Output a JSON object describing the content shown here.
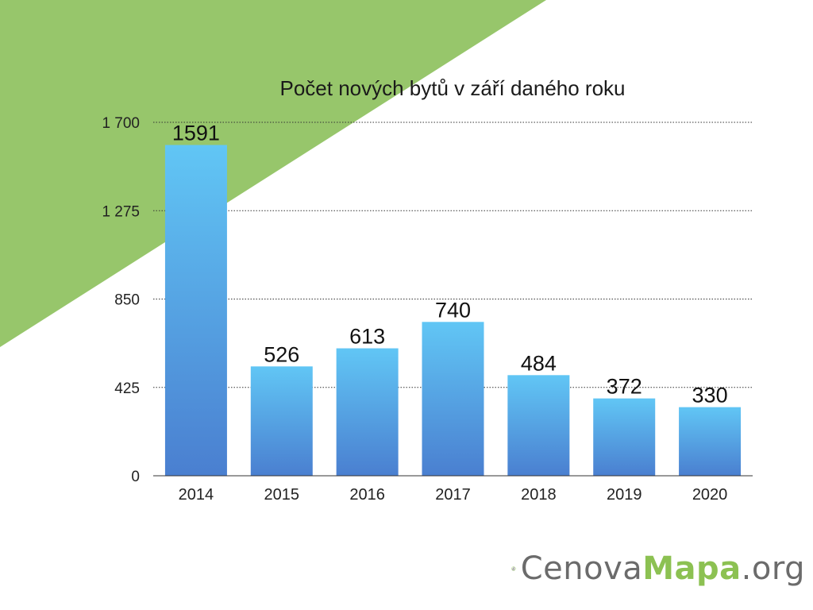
{
  "colors": {
    "accent_green": "#97c66b",
    "bar_top": "#61c6f5",
    "bar_bottom": "#4a7fd0",
    "logo_gray": "#6b6b6b",
    "logo_green": "#8cc152"
  },
  "logo": {
    "icon": "globe-grid-icon",
    "part_a": "Cenova",
    "part_b": "Mapa",
    "part_c": ".org"
  },
  "chart_data": {
    "type": "bar",
    "title": "Počet nových bytů v září daného roku",
    "xlabel": "",
    "ylabel": "",
    "categories": [
      "2014",
      "2015",
      "2016",
      "2017",
      "2018",
      "2019",
      "2020"
    ],
    "values": [
      1591,
      526,
      613,
      740,
      484,
      372,
      330
    ],
    "data_labels": [
      "1591",
      "526",
      "613",
      "740",
      "484",
      "372",
      "330"
    ],
    "ylim": [
      0,
      1700
    ],
    "yticks": [
      0,
      425,
      850,
      1275,
      1700
    ],
    "ytick_labels": [
      "0",
      "425",
      "850",
      "1 275",
      "1 700"
    ],
    "grid": "horizontal dotted",
    "legend": "none"
  }
}
